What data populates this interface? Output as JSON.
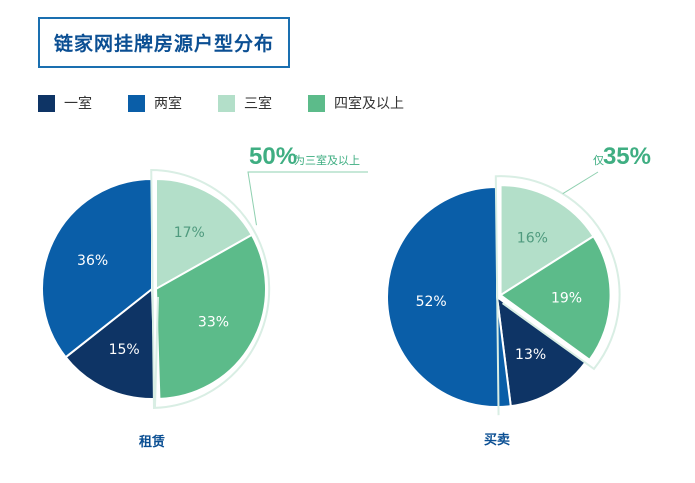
{
  "title": "链家网挂牌房源户型分布",
  "colors": {
    "一室": "#0e3465",
    "两室": "#0a5ea8",
    "三室": "#b3dfc9",
    "四室及以上": "#5cbb8a",
    "accent": "#3fae82",
    "title": "#0b4f93"
  },
  "legend": [
    "一室",
    "两室",
    "三室",
    "四室及以上"
  ],
  "chart_data": [
    {
      "type": "pie",
      "title": "租赁",
      "categories": [
        "一室",
        "两室",
        "三室",
        "四室及以上"
      ],
      "values": [
        15,
        36,
        17,
        33
      ],
      "labels": [
        "15%",
        "36%",
        "17%",
        "33%"
      ],
      "exploded": [
        "三室",
        "四室及以上"
      ],
      "callout": {
        "value": "50%",
        "text": "为三室及以上"
      }
    },
    {
      "type": "pie",
      "title": "买卖",
      "categories": [
        "一室",
        "两室",
        "三室",
        "四室及以上"
      ],
      "values": [
        13,
        52,
        16,
        19
      ],
      "labels": [
        "13%",
        "52%",
        "16%",
        "19%"
      ],
      "exploded": [
        "三室",
        "四室及以上"
      ],
      "callout": {
        "prefix": "仅",
        "value": "35%"
      }
    }
  ]
}
